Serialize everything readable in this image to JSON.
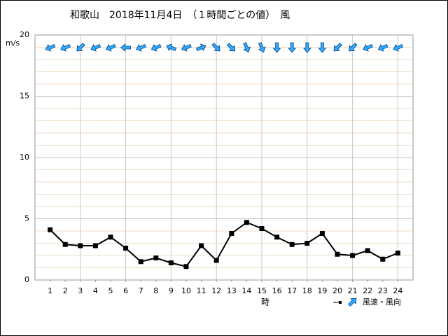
{
  "chart_data": {
    "type": "line",
    "title": "和歌山　2018年11月4日　（１時間ごとの値）　風",
    "y_label": "m/s",
    "x_label": "時",
    "legend": "風速・風向",
    "x": [
      1,
      2,
      3,
      4,
      5,
      6,
      7,
      8,
      9,
      10,
      11,
      12,
      13,
      14,
      15,
      16,
      17,
      18,
      19,
      20,
      21,
      22,
      23,
      24
    ],
    "series": [
      {
        "name": "風速",
        "color": "#000000",
        "values": [
          4.1,
          2.9,
          2.8,
          2.8,
          3.5,
          2.6,
          1.5,
          1.8,
          1.4,
          1.1,
          2.8,
          1.6,
          3.8,
          4.7,
          4.2,
          3.5,
          2.9,
          3.0,
          3.8,
          2.1,
          2.0,
          2.4,
          1.7,
          2.2
        ]
      }
    ],
    "directions": [
      67.5,
      67.5,
      45,
      67.5,
      67.5,
      90,
      67.5,
      67.5,
      112.5,
      67.5,
      247.5,
      315,
      315,
      337.5,
      337.5,
      0,
      0,
      0,
      0,
      45,
      45,
      67.5,
      67.5,
      67.5
    ],
    "arrow_color": "#33aaff",
    "xlim": [
      0,
      25
    ],
    "xticks": [
      1,
      2,
      3,
      4,
      5,
      6,
      7,
      8,
      9,
      10,
      11,
      12,
      13,
      14,
      15,
      16,
      17,
      18,
      19,
      20,
      21,
      22,
      23,
      24
    ],
    "xgrid": [
      3,
      6,
      9,
      12,
      15,
      18,
      21,
      24
    ],
    "ylim": [
      0,
      20
    ],
    "yticks": [
      0,
      5,
      10,
      15,
      20
    ],
    "minor_grid_step": 1,
    "grid": true
  }
}
